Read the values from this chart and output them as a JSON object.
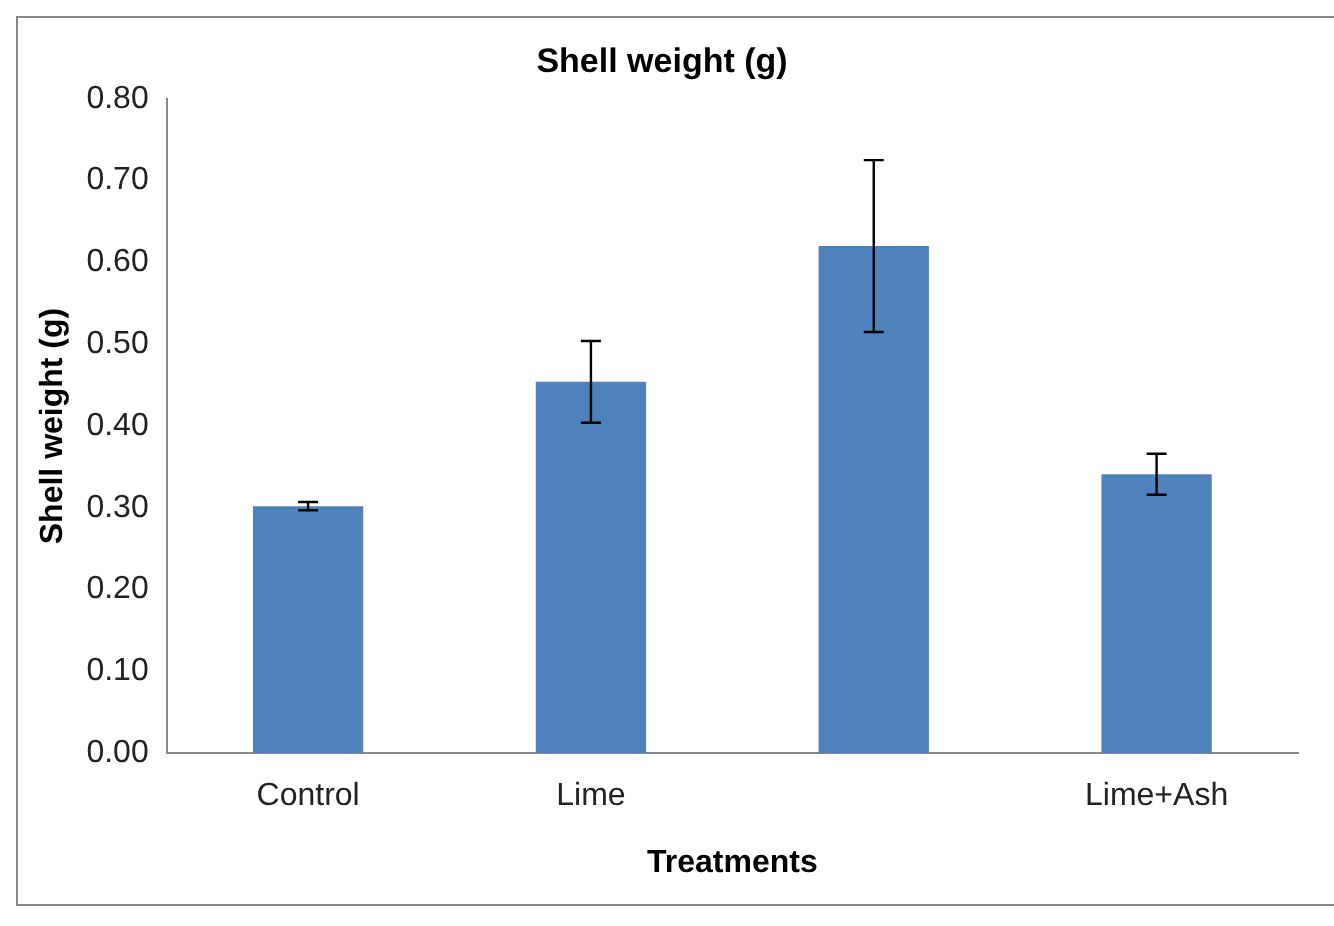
{
  "chart_data": {
    "type": "bar",
    "title": "Shell weight (g)",
    "xlabel": "Treatments",
    "ylabel": "Shell weight (g)",
    "categories": [
      "Control",
      "Lime",
      null,
      "Lime+Ash"
    ],
    "values": [
      0.302,
      0.454,
      0.62,
      0.341
    ],
    "errors": [
      0.005,
      0.05,
      0.105,
      0.025
    ],
    "color": "#4f81bd",
    "ylim": [
      0,
      0.8
    ],
    "yticks": [
      {
        "value": 0,
        "label": "0.00"
      },
      {
        "value": 0.1,
        "label": "0.10"
      },
      {
        "value": 0.2,
        "label": "0.20"
      },
      {
        "value": 0.3,
        "label": "0.30"
      },
      {
        "value": 0.4,
        "label": "0.40"
      },
      {
        "value": 0.5,
        "label": "0.50"
      },
      {
        "value": 0.6,
        "label": "0.60"
      },
      {
        "value": 0.7,
        "label": "0.70"
      },
      {
        "value": 0.8,
        "label": "0.80"
      }
    ],
    "grid": false,
    "legend": false
  }
}
